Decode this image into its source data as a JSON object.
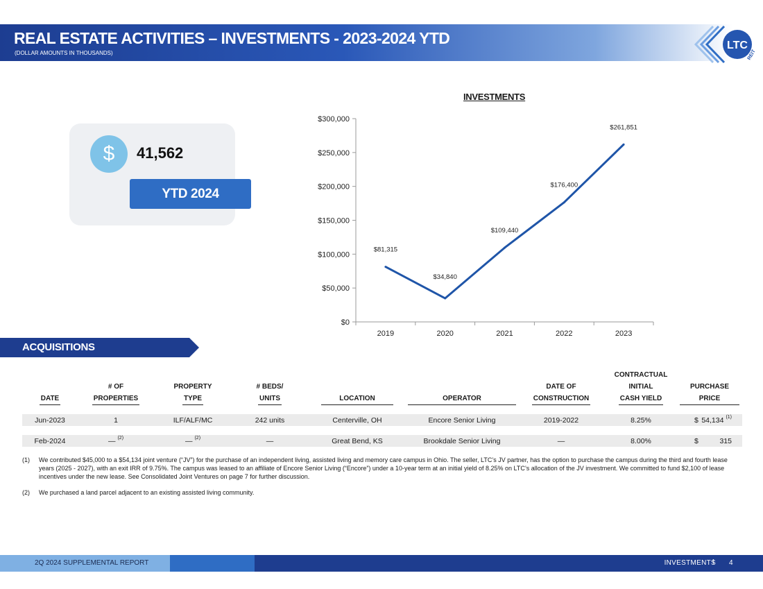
{
  "header": {
    "title": "REAL ESTATE ACTIVITIES – INVESTMENTS - 2023-2024 YTD",
    "subtitle": "(DOLLAR AMOUNTS IN THOUSANDS)",
    "logo_text": "LTC",
    "logo_subtext": "REIT",
    "colors": {
      "dark": "#1d3d91",
      "mid": "#2a58b8",
      "accent": "#2f6dc4"
    }
  },
  "stat": {
    "symbol": "$",
    "value": "41,562",
    "label": "YTD 2024"
  },
  "chart_data": {
    "type": "line",
    "title": "INVESTMENTS",
    "categories": [
      "2019",
      "2020",
      "2021",
      "2022",
      "2023"
    ],
    "values": [
      81315,
      34840,
      109440,
      176400,
      261851
    ],
    "data_labels": [
      "$81,315",
      "$34,840",
      "$109,440",
      "$176,400",
      "$261,851"
    ],
    "ylim": [
      0,
      300000
    ],
    "yticks": [
      0,
      50000,
      100000,
      150000,
      200000,
      250000,
      300000
    ],
    "ytick_labels": [
      "$0",
      "$50,000",
      "$100,000",
      "$150,000",
      "$200,000",
      "$250,000",
      "$300,000"
    ],
    "xlabel": "",
    "ylabel": "",
    "grid": false,
    "line_color": "#1f55a8"
  },
  "acquisitions": {
    "section_label": "ACQUISITIONS",
    "headers": [
      [
        "DATE"
      ],
      [
        "# OF",
        "PROPERTIES"
      ],
      [
        "PROPERTY",
        "TYPE"
      ],
      [
        "# BEDS/",
        "UNITS"
      ],
      [
        "LOCATION"
      ],
      [
        "OPERATOR"
      ],
      [
        "DATE OF",
        "CONSTRUCTION"
      ],
      [
        "CONTRACTUAL",
        "INITIAL",
        "CASH YIELD"
      ],
      [
        "PURCHASE",
        "PRICE"
      ]
    ],
    "rows": [
      {
        "date": "Jun-2023",
        "properties": "1",
        "properties_note": "",
        "type": "ILF/ALF/MC",
        "type_note": "",
        "units": "242 units",
        "location": "Centerville, OH",
        "operator": "Encore Senior Living",
        "construction": "2019-2022",
        "yield": "8.25%",
        "price_symbol": "$",
        "price": "54,134",
        "price_note": "(1)"
      },
      {
        "date": "Feb-2024",
        "properties": "—",
        "properties_note": "(2)",
        "type": "—",
        "type_note": "(2)",
        "units": "—",
        "location": "Great Bend, KS",
        "operator": "Brookdale Senior Living",
        "construction": "—",
        "yield": "8.00%",
        "price_symbol": "$",
        "price": "315",
        "price_note": ""
      }
    ]
  },
  "footnotes": [
    {
      "num": "(1)",
      "text": "We contributed $45,000 to a $54,134 joint venture (“JV”) for the purchase of an independent living, assisted living and memory care campus in Ohio. The seller, LTC’s JV partner, has the option to purchase the campus during the third and fourth lease years (2025 - 2027), with an exit IRR of 9.75%. The campus was leased to an affiliate of Encore Senior Living (“Encore”) under a 10-year term at an initial yield of 8.25% on LTC’s allocation of the JV investment. We committed to fund $2,100 of lease incentives under the new lease. See Consolidated Joint Ventures on page 7 for further discussion."
    },
    {
      "num": "(2)",
      "text": "We purchased a land parcel adjacent to an existing assisted living community."
    }
  ],
  "footer": {
    "left": "2Q 2024 SUPPLEMENTAL REPORT",
    "right": "INVESTMENTS",
    "separator": "I",
    "page": "4"
  }
}
